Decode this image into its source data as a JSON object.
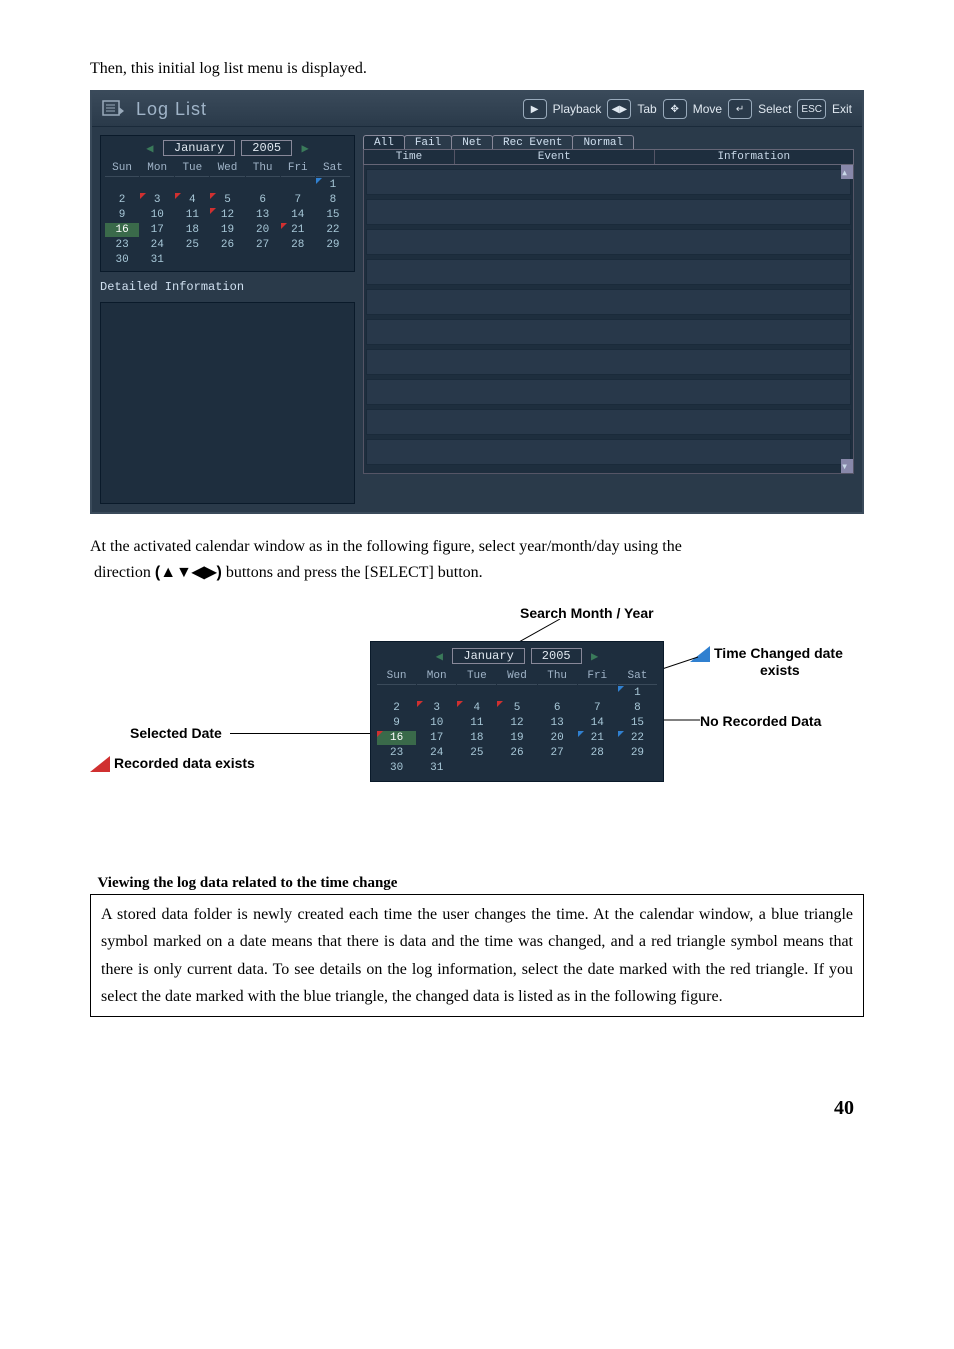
{
  "intro_text": "Then, this initial log list menu is displayed.",
  "window": {
    "title": "Log List",
    "help": [
      {
        "key": "▶",
        "label": "Playback"
      },
      {
        "key": "◀▶",
        "label": "Tab"
      },
      {
        "key": "✥",
        "label": "Move"
      },
      {
        "key": "↵",
        "label": "Select"
      },
      {
        "key": "ESC",
        "label": "Exit"
      }
    ]
  },
  "calendar": {
    "month": "January",
    "year": "2005",
    "daynames": [
      "Sun",
      "Mon",
      "Tue",
      "Wed",
      "Thu",
      "Fri",
      "Sat"
    ],
    "rows": [
      [
        "",
        "",
        "",
        "",
        "",
        "",
        "1"
      ],
      [
        "2",
        "3",
        "4",
        "5",
        "6",
        "7",
        "8"
      ],
      [
        "9",
        "10",
        "11",
        "12",
        "13",
        "14",
        "15"
      ],
      [
        "16",
        "17",
        "18",
        "19",
        "20",
        "21",
        "22"
      ],
      [
        "23",
        "24",
        "25",
        "26",
        "27",
        "28",
        "29"
      ],
      [
        "30",
        "31",
        "",
        "",
        "",
        "",
        ""
      ]
    ],
    "red_triangles": [
      "3",
      "4",
      "5",
      "12",
      "21"
    ],
    "blue_triangles": [
      "1"
    ],
    "highlight": "16"
  },
  "detail_label": "Detailed Information",
  "tabs": [
    "All",
    "Fail",
    "Net",
    "Rec Event",
    "Normal"
  ],
  "active_tab": 0,
  "log_columns": {
    "time": "Time",
    "event": "Event",
    "info": "Information"
  },
  "log_row_count": 10,
  "caption": {
    "line1_a": "At the activated calendar window as in the following figure, select year/month/day using the",
    "line1_b": "direction ",
    "symbols": "(▲▼◀▶)",
    "line1_c": " buttons and press the [SELECT] button."
  },
  "fig2": {
    "search_label": "Search Month / Year",
    "time_changed_label_a": "Time Changed date",
    "time_changed_label_b": "exists",
    "selected_date_label": "Selected Date",
    "recorded_label": "Recorded data exists",
    "no_recorded_label": "No Recorded Data",
    "cal": {
      "month": "January",
      "year": "2005",
      "daynames": [
        "Sun",
        "Mon",
        "Tue",
        "Wed",
        "Thu",
        "Fri",
        "Sat"
      ],
      "rows": [
        [
          "",
          "",
          "",
          "",
          "",
          "",
          "1"
        ],
        [
          "2",
          "3",
          "4",
          "5",
          "6",
          "7",
          "8"
        ],
        [
          "9",
          "10",
          "11",
          "12",
          "13",
          "14",
          "15"
        ],
        [
          "16",
          "17",
          "18",
          "19",
          "20",
          "21",
          "22"
        ],
        [
          "23",
          "24",
          "25",
          "26",
          "27",
          "28",
          "29"
        ],
        [
          "30",
          "31",
          "",
          "",
          "",
          "",
          ""
        ]
      ],
      "red_triangles": [
        "3",
        "4",
        "5",
        "16"
      ],
      "blue_triangles": [
        "1",
        "21",
        "22"
      ],
      "highlight": "16"
    }
  },
  "section_title": "Viewing the log data related to the time change",
  "boxed_text": "A stored data folder is newly created each time the user changes the time. At the calendar window, a blue triangle symbol marked on a date means that there is data and the time was changed, and a red triangle symbol means that there is only current data. To see details on the log information, select the date marked with the red triangle. If you select the date marked with the blue triangle, the changed data is listed as in the following figure.",
  "page_number": "40",
  "colors": {
    "window_bg": "#2a3a4a",
    "panel_bg": "#1e2e3e",
    "text_light": "#d0e0f0",
    "red": "#d03030",
    "blue": "#3080d0",
    "highlight": "#3a6a4a"
  }
}
